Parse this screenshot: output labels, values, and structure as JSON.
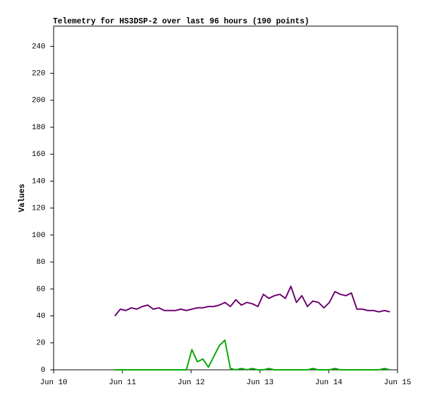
{
  "chart_data": {
    "type": "line",
    "title": "Telemetry for HS3DSP-2 over last 96 hours (190 points)",
    "ylabel": "Values",
    "x": [
      10.89,
      10.97,
      11.05,
      11.13,
      11.21,
      11.29,
      11.37,
      11.45,
      11.53,
      11.61,
      11.69,
      11.77,
      11.85,
      11.93,
      12.01,
      12.09,
      12.17,
      12.25,
      12.33,
      12.41,
      12.49,
      12.57,
      12.65,
      12.73,
      12.81,
      12.89,
      12.97,
      13.05,
      13.13,
      13.21,
      13.29,
      13.37,
      13.45,
      13.53,
      13.61,
      13.69,
      13.77,
      13.85,
      13.93,
      14.01,
      14.09,
      14.17,
      14.25,
      14.33,
      14.41,
      14.49,
      14.57,
      14.65,
      14.73,
      14.81,
      14.89
    ],
    "series": [
      {
        "color": "#6c0070",
        "values": [
          40,
          45,
          44,
          46,
          45,
          47,
          48,
          45,
          46,
          44,
          44,
          44,
          45,
          44,
          45,
          46,
          46,
          47,
          47,
          48,
          50,
          47,
          52,
          48,
          50,
          49,
          47,
          56,
          53,
          55,
          56,
          53,
          62,
          50,
          55,
          47,
          51,
          50,
          46,
          50,
          58,
          56,
          55,
          57,
          45,
          45,
          44,
          44,
          43,
          44,
          43
        ]
      },
      {
        "color": "#00aa00",
        "values": [
          0,
          0,
          0,
          0,
          0,
          0,
          0,
          0,
          0,
          0,
          0,
          0,
          0,
          0,
          15,
          6,
          8,
          2,
          10,
          18,
          22,
          1,
          0,
          1,
          0,
          1,
          0,
          0,
          1,
          0,
          0,
          0,
          0,
          0,
          0,
          0,
          1,
          0,
          0,
          0,
          1,
          0,
          0,
          0,
          0,
          0,
          0,
          0,
          0,
          1,
          0
        ]
      }
    ],
    "xlim": [
      10,
      15
    ],
    "xticks": [
      {
        "value": 10,
        "label": "Jun 10"
      },
      {
        "value": 11,
        "label": "Jun 11"
      },
      {
        "value": 12,
        "label": "Jun 12"
      },
      {
        "value": 13,
        "label": "Jun 13"
      },
      {
        "value": 14,
        "label": "Jun 14"
      },
      {
        "value": 15,
        "label": "Jun 15"
      }
    ],
    "ylim": [
      0,
      255
    ],
    "yticks": [
      0,
      20,
      40,
      60,
      80,
      100,
      120,
      140,
      160,
      180,
      200,
      220,
      240
    ],
    "grid": false
  }
}
